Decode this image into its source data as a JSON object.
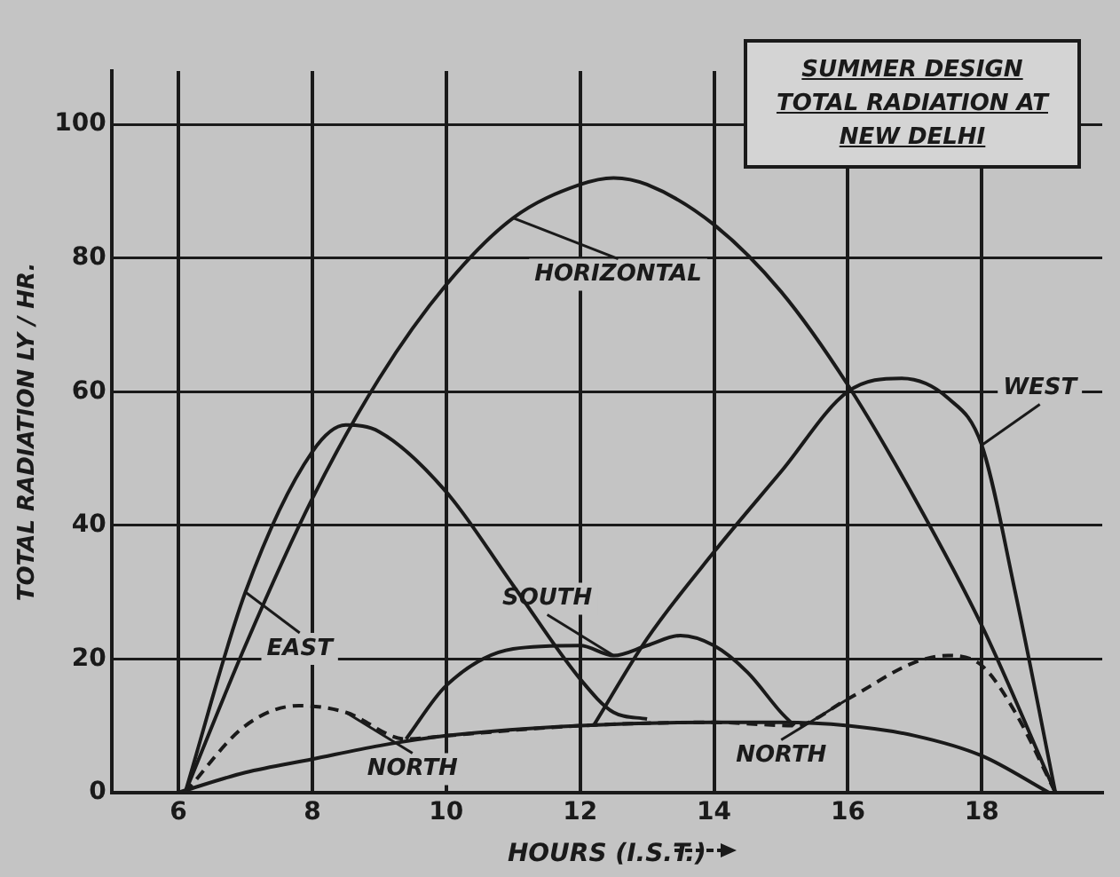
{
  "chart_data": {
    "type": "line",
    "title": "SUMMER DESIGN TOTAL RADIATION AT NEW DELHI",
    "xlabel": "HOURS (I.S.T.)",
    "ylabel": "TOTAL RADIATION LY / HR.",
    "xlim": [
      5,
      19.8
    ],
    "xticks": [
      6,
      8,
      10,
      12,
      14,
      16,
      18
    ],
    "ylim": [
      0,
      108
    ],
    "yticks": [
      0,
      20,
      40,
      60,
      80,
      100
    ],
    "grid": true,
    "legend": false,
    "marker": "none",
    "line_style": "solid",
    "series": [
      {
        "color": "#1a1a1a",
        "x": [
          6.1,
          7,
          8,
          9,
          10,
          11,
          12,
          12.5,
          13,
          14,
          15,
          16,
          17,
          18,
          19.1
        ],
        "values": [
          0,
          22,
          44,
          62,
          76,
          86,
          91,
          92,
          91,
          85,
          75,
          61,
          44,
          25,
          0
        ]
      },
      {
        "color": "#1a1a1a",
        "x": [
          6.1,
          7,
          8,
          8.5,
          9,
          10,
          11,
          12,
          12.5,
          13
        ],
        "values": [
          0,
          30,
          51,
          55,
          54,
          45,
          31,
          17,
          12,
          11
        ]
      },
      {
        "color": "#1a1a1a",
        "x": [
          12.2,
          13,
          14,
          15,
          16,
          16.8,
          17.5,
          18,
          18.5,
          19.1
        ],
        "values": [
          10,
          23,
          36,
          48,
          60,
          62,
          59,
          52,
          30,
          0
        ]
      },
      {
        "color": "#1a1a1a",
        "x": [
          9.4,
          10,
          11,
          12,
          12.5,
          13,
          13.5,
          14,
          14.5,
          15,
          15.2
        ],
        "values": [
          8,
          16,
          21.5,
          22,
          20.5,
          22,
          23.5,
          22,
          18,
          12,
          10
        ]
      },
      {
        "color": "#1a1a1a",
        "line_style": "dashed",
        "x": [
          6.1,
          7,
          7.8,
          8.5,
          9.4,
          10,
          12,
          14,
          15.2,
          16,
          17,
          17.5,
          18,
          18.5,
          19.1
        ],
        "values": [
          0,
          10,
          13,
          12,
          8,
          8.5,
          10,
          10.5,
          10,
          14,
          19.5,
          20.5,
          19,
          12,
          0
        ]
      },
      {
        "color": "#1a1a1a",
        "x": [
          6,
          7,
          8,
          9,
          10,
          12,
          14,
          15,
          16,
          17,
          18,
          19
        ],
        "values": [
          0,
          3,
          5,
          7,
          8.5,
          10,
          10.5,
          10.5,
          10,
          8.5,
          5.5,
          0
        ]
      }
    ],
    "annotations": [
      {
        "text": "EAST",
        "x": 7,
        "y": 30
      },
      {
        "text": "HORIZONTAL",
        "x": 11,
        "y": 86
      },
      {
        "text": "WEST",
        "x": 18,
        "y": 52
      },
      {
        "text": "SOUTH",
        "x": 12.5,
        "y": 20.5
      },
      {
        "text": "NORTH",
        "x": 8.5,
        "y": 12
      },
      {
        "text": "NORTH",
        "x": 16,
        "y": 14
      }
    ]
  }
}
